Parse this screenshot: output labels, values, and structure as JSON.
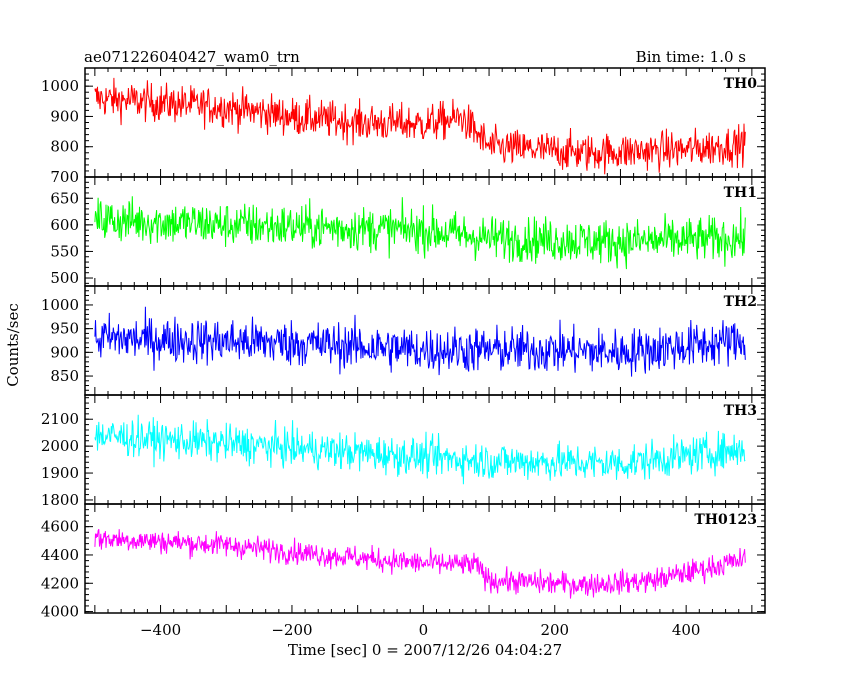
{
  "chart_data": {
    "type": "line",
    "title": "ae071226040427_wam0_trn",
    "subtitle": "Bin time: 1.0 s",
    "xlabel": "Time [sec] 0 = 2007/12/26 04:04:27",
    "ylabel": "Counts/sec",
    "xlim": [
      -515,
      520
    ],
    "x_ticks": [
      -400,
      -200,
      0,
      200,
      400
    ],
    "grid": false,
    "series_x_range": [
      -500,
      490
    ],
    "panels": [
      {
        "name": "TH0",
        "color": "#ff0000",
        "ylim": [
          700,
          1060
        ],
        "y_ticks": [
          700,
          800,
          900,
          1000
        ],
        "trend": [
          [
            -500,
            960
          ],
          [
            -300,
            930
          ],
          [
            -200,
            900
          ],
          [
            -100,
            880
          ],
          [
            0,
            875
          ],
          [
            60,
            895
          ],
          [
            100,
            800
          ],
          [
            250,
            780
          ],
          [
            400,
            790
          ],
          [
            490,
            810
          ]
        ],
        "noise": 45
      },
      {
        "name": "TH1",
        "color": "#00ff00",
        "ylim": [
          485,
          690
        ],
        "y_ticks": [
          500,
          550,
          600,
          650
        ],
        "trend": [
          [
            -500,
            610
          ],
          [
            -300,
            600
          ],
          [
            0,
            590
          ],
          [
            100,
            575
          ],
          [
            300,
            568
          ],
          [
            490,
            575
          ]
        ],
        "noise": 30
      },
      {
        "name": "TH2",
        "color": "#0000ff",
        "ylim": [
          810,
          1040
        ],
        "y_ticks": [
          850,
          900,
          950,
          1000
        ],
        "trend": [
          [
            -500,
            930
          ],
          [
            -200,
            920
          ],
          [
            0,
            905
          ],
          [
            200,
            905
          ],
          [
            300,
            900
          ],
          [
            490,
            925
          ]
        ],
        "noise": 35
      },
      {
        "name": "TH3",
        "color": "#00ffff",
        "ylim": [
          1785,
          2190
        ],
        "y_ticks": [
          1800,
          1900,
          2000,
          2100
        ],
        "trend": [
          [
            -500,
            2040
          ],
          [
            -300,
            2010
          ],
          [
            0,
            1960
          ],
          [
            100,
            1945
          ],
          [
            300,
            1935
          ],
          [
            490,
            1990
          ]
        ],
        "noise": 50
      },
      {
        "name": "TH0123",
        "color": "#ff00ff",
        "ylim": [
          3990,
          4760
        ],
        "y_ticks": [
          4000,
          4200,
          4400,
          4600
        ],
        "trend": [
          [
            -500,
            4520
          ],
          [
            -300,
            4470
          ],
          [
            -150,
            4400
          ],
          [
            0,
            4340
          ],
          [
            80,
            4330
          ],
          [
            100,
            4220
          ],
          [
            250,
            4190
          ],
          [
            350,
            4220
          ],
          [
            490,
            4370
          ]
        ],
        "noise": 60
      }
    ]
  }
}
